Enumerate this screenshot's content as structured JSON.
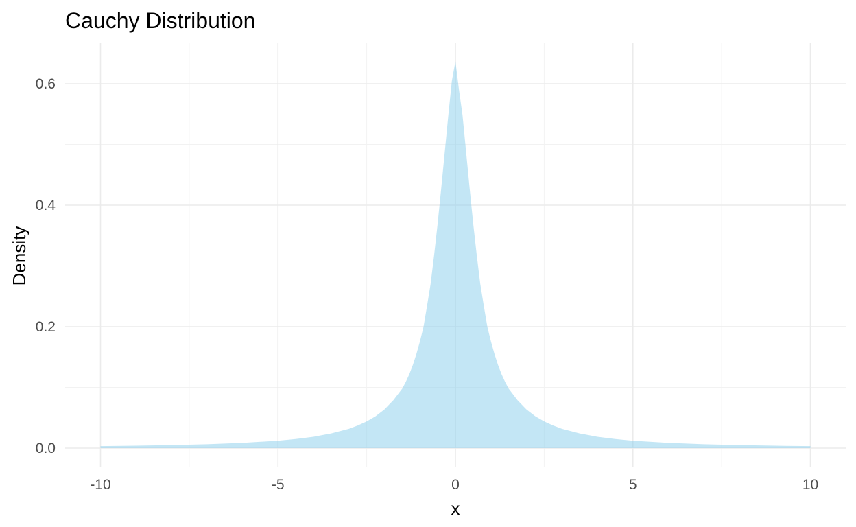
{
  "chart_data": {
    "type": "area",
    "title": "Cauchy Distribution",
    "xlabel": "x",
    "ylabel": "Density",
    "xlim": [
      -10,
      10
    ],
    "ylim": [
      0,
      0.64
    ],
    "x_ticks": [
      -10,
      -5,
      0,
      5,
      10
    ],
    "x_tick_labels": [
      "-10",
      "-5",
      "0",
      "5",
      "10"
    ],
    "y_ticks": [
      0.0,
      0.2,
      0.4,
      0.6
    ],
    "y_tick_labels": [
      "0.0",
      "0.2",
      "0.4",
      "0.6"
    ],
    "grid": true,
    "legend": "none",
    "fill_color": "#87ceeb",
    "fill_opacity": 0.5,
    "series": [
      {
        "x": [
          -10,
          -9,
          -8,
          -7,
          -6,
          -5,
          -4.5,
          -4,
          -3.5,
          -3,
          -2.75,
          -2.5,
          -2.25,
          -2,
          -1.75,
          -1.5,
          -1.4,
          -1.3,
          -1.2,
          -1.1,
          -1,
          -0.9,
          -0.8,
          -0.7,
          -0.6,
          -0.5,
          -0.4,
          -0.3,
          -0.2,
          -0.1,
          0,
          0.1,
          0.2,
          0.3,
          0.4,
          0.5,
          0.6,
          0.7,
          0.8,
          0.9,
          1,
          1.1,
          1.2,
          1.3,
          1.4,
          1.5,
          1.75,
          2,
          2.25,
          2.5,
          2.75,
          3,
          3.5,
          4,
          4.5,
          5,
          6,
          7,
          8,
          9,
          10
        ],
        "y": [
          0.0032,
          0.0039,
          0.0049,
          0.0064,
          0.0086,
          0.0122,
          0.015,
          0.0187,
          0.0241,
          0.0318,
          0.0373,
          0.0439,
          0.0524,
          0.0637,
          0.0788,
          0.0979,
          0.1089,
          0.1216,
          0.1369,
          0.155,
          0.1757,
          0.1995,
          0.234,
          0.27,
          0.318,
          0.37,
          0.428,
          0.488,
          0.548,
          0.605,
          0.637,
          0.59,
          0.548,
          0.488,
          0.428,
          0.37,
          0.318,
          0.27,
          0.234,
          0.1995,
          0.1757,
          0.155,
          0.1369,
          0.1216,
          0.1089,
          0.0979,
          0.0788,
          0.0637,
          0.0524,
          0.0439,
          0.0373,
          0.0318,
          0.0241,
          0.0187,
          0.015,
          0.0122,
          0.0086,
          0.0064,
          0.0049,
          0.0039,
          0.0032
        ]
      }
    ]
  }
}
